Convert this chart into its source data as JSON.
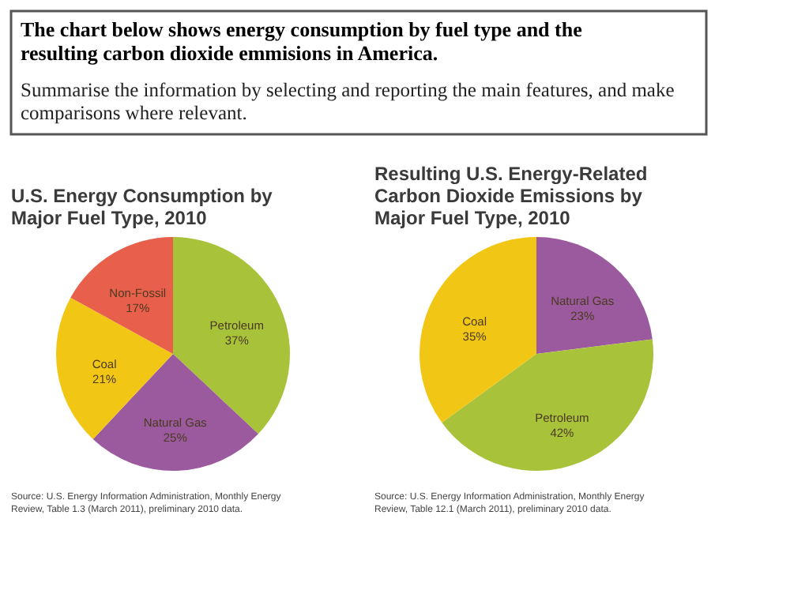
{
  "chart_data": [
    {
      "type": "other",
      "title": "The chart below shows energy consumption by fuel type and the resulting carbon dioxide emmisions in America.",
      "annotations": [
        "Summarise the information by selecting and reporting the main features, and make comparisons where relevant."
      ]
    },
    {
      "type": "pie",
      "title": "U.S. Energy Consumption by Major Fuel Type, 2010",
      "categories": [
        "Petroleum",
        "Natural Gas",
        "Coal",
        "Non-Fossil"
      ],
      "values": [
        37,
        25,
        21,
        17
      ],
      "value_labels": [
        "37%",
        "25%",
        "21%",
        "17%"
      ],
      "colors": [
        "#a8c23a",
        "#9b5a9e",
        "#f2c615",
        "#e8604c"
      ],
      "annotations": [
        "Source: U.S. Energy Information Administration, Monthly Energy Review, Table 1.3 (March 2011), preliminary 2010 data."
      ]
    },
    {
      "type": "pie",
      "title": "Resulting U.S. Energy-Related Carbon Dioxide Emissions by Major Fuel Type, 2010",
      "categories": [
        "Natural Gas",
        "Petroleum",
        "Coal"
      ],
      "values": [
        23,
        42,
        35
      ],
      "value_labels": [
        "23%",
        "42%",
        "35%"
      ],
      "colors": [
        "#9b5a9e",
        "#a8c23a",
        "#f2c615"
      ],
      "annotations": [
        "Source: U.S. Energy Information Administration, Monthly Energy Review, Table 12.1 (March 2011), preliminary 2010 data."
      ]
    }
  ]
}
